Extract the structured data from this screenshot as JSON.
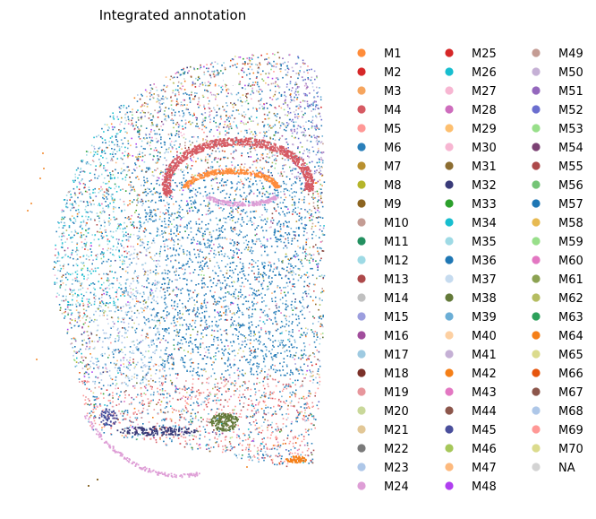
{
  "chart_data": {
    "type": "scatter",
    "title": "Integrated annotation",
    "xlabel": "",
    "ylabel": "",
    "grid": false,
    "axes_visible": false,
    "legend_placement": "right",
    "legend": [
      {
        "label": "M1",
        "color": "#ff8c3a"
      },
      {
        "label": "M2",
        "color": "#d62728"
      },
      {
        "label": "M3",
        "color": "#f6a55e"
      },
      {
        "label": "M4",
        "color": "#d65a63"
      },
      {
        "label": "M5",
        "color": "#ff9896"
      },
      {
        "label": "M6",
        "color": "#2a7fba"
      },
      {
        "label": "M7",
        "color": "#b9902f"
      },
      {
        "label": "M8",
        "color": "#b5b52a"
      },
      {
        "label": "M9",
        "color": "#8c6420"
      },
      {
        "label": "M10",
        "color": "#c49c94"
      },
      {
        "label": "M11",
        "color": "#239060"
      },
      {
        "label": "M12",
        "color": "#9edae5"
      },
      {
        "label": "M13",
        "color": "#ad494a"
      },
      {
        "label": "M14",
        "color": "#c0c0c0"
      },
      {
        "label": "M15",
        "color": "#9c9ede"
      },
      {
        "label": "M16",
        "color": "#a14d9c"
      },
      {
        "label": "M17",
        "color": "#9ecae1"
      },
      {
        "label": "M18",
        "color": "#7b3129"
      },
      {
        "label": "M19",
        "color": "#e7969c"
      },
      {
        "label": "M20",
        "color": "#c9d89a"
      },
      {
        "label": "M21",
        "color": "#e2c796"
      },
      {
        "label": "M22",
        "color": "#7a7a7a"
      },
      {
        "label": "M23",
        "color": "#aec7e8"
      },
      {
        "label": "M24",
        "color": "#de9ed6"
      },
      {
        "label": "M25",
        "color": "#d62728"
      },
      {
        "label": "M26",
        "color": "#17becf"
      },
      {
        "label": "M27",
        "color": "#f7b6d2"
      },
      {
        "label": "M28",
        "color": "#ce6dbd"
      },
      {
        "label": "M29",
        "color": "#fdbf6f"
      },
      {
        "label": "M30",
        "color": "#f7b6d2"
      },
      {
        "label": "M31",
        "color": "#8c6d31"
      },
      {
        "label": "M32",
        "color": "#393b79"
      },
      {
        "label": "M33",
        "color": "#2ca02c"
      },
      {
        "label": "M34",
        "color": "#17becf"
      },
      {
        "label": "M35",
        "color": "#9edae5"
      },
      {
        "label": "M36",
        "color": "#1f77b4"
      },
      {
        "label": "M37",
        "color": "#c6dbef"
      },
      {
        "label": "M38",
        "color": "#637939"
      },
      {
        "label": "M39",
        "color": "#6baed6"
      },
      {
        "label": "M40",
        "color": "#fdd0a2"
      },
      {
        "label": "M41",
        "color": "#c5b0d5"
      },
      {
        "label": "M42",
        "color": "#f57f17"
      },
      {
        "label": "M43",
        "color": "#e377c2"
      },
      {
        "label": "M44",
        "color": "#8c564b"
      },
      {
        "label": "M45",
        "color": "#4a4f9c"
      },
      {
        "label": "M46",
        "color": "#a6c75a"
      },
      {
        "label": "M47",
        "color": "#fdb97d"
      },
      {
        "label": "M48",
        "color": "#b03ff0"
      },
      {
        "label": "M49",
        "color": "#c49c94"
      },
      {
        "label": "M50",
        "color": "#c5b0d5"
      },
      {
        "label": "M51",
        "color": "#9467bd"
      },
      {
        "label": "M52",
        "color": "#6b6ecf"
      },
      {
        "label": "M53",
        "color": "#98df8a"
      },
      {
        "label": "M54",
        "color": "#7b4173"
      },
      {
        "label": "M55",
        "color": "#ad494a"
      },
      {
        "label": "M56",
        "color": "#74c476"
      },
      {
        "label": "M57",
        "color": "#1f77b4"
      },
      {
        "label": "M58",
        "color": "#e7ba52"
      },
      {
        "label": "M59",
        "color": "#98df8a"
      },
      {
        "label": "M60",
        "color": "#e377c2"
      },
      {
        "label": "M61",
        "color": "#8ca252"
      },
      {
        "label": "M62",
        "color": "#b5bd61"
      },
      {
        "label": "M63",
        "color": "#2ca05a"
      },
      {
        "label": "M64",
        "color": "#f57f17"
      },
      {
        "label": "M65",
        "color": "#dbdb8d"
      },
      {
        "label": "M66",
        "color": "#e6550d"
      },
      {
        "label": "M67",
        "color": "#8c564b"
      },
      {
        "label": "M68",
        "color": "#aec7e8"
      },
      {
        "label": "M69",
        "color": "#ff9896"
      },
      {
        "label": "M70",
        "color": "#dbdb8d"
      },
      {
        "label": "NA",
        "color": "#d3d3d3"
      }
    ]
  }
}
